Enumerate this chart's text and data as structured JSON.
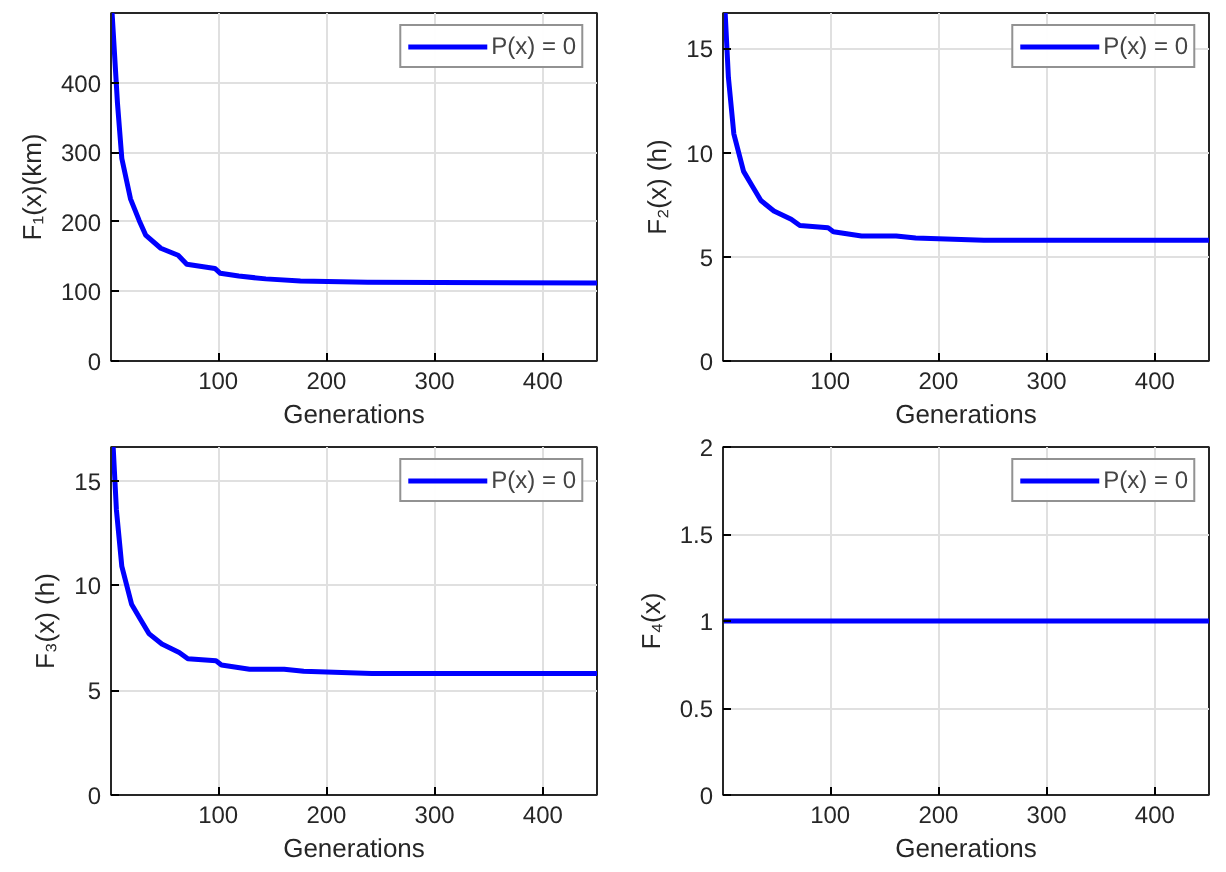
{
  "chart_data": [
    {
      "type": "line",
      "xlabel": "Generations",
      "ylabel": "F₁(x)(km)",
      "xlim": [
        1,
        450
      ],
      "ylim": [
        0,
        500
      ],
      "xticks": [
        100,
        200,
        300,
        400
      ],
      "yticks": [
        0,
        100,
        200,
        300,
        400
      ],
      "grid": true,
      "legend": "top right",
      "line_style": "solid",
      "x": [
        2,
        7,
        11,
        19,
        27,
        33,
        47,
        63,
        71,
        97,
        102,
        119,
        144,
        176,
        238,
        450
      ],
      "series": [
        {
          "name": "P(x) = 0",
          "color": "#0000ff",
          "values": [
            500,
            370,
            291,
            233,
            202,
            181,
            162,
            152,
            139,
            133,
            126,
            122,
            118,
            115,
            113,
            112
          ]
        }
      ]
    },
    {
      "type": "line",
      "xlabel": "Generations",
      "ylabel": "F₂(x) (h)",
      "xlim": [
        1,
        450
      ],
      "ylim": [
        0,
        16.7
      ],
      "xticks": [
        100,
        200,
        300,
        400
      ],
      "yticks": [
        0,
        5,
        10,
        15
      ],
      "grid": true,
      "legend": "top right",
      "line_style": "solid",
      "x": [
        3,
        6,
        11,
        20,
        28,
        36,
        48,
        64,
        72,
        98,
        103,
        129,
        161,
        179,
        242,
        450
      ],
      "series": [
        {
          "name": "P(x) = 0",
          "color": "#0000ff",
          "values": [
            16.7,
            13.6,
            10.9,
            9.1,
            8.4,
            7.7,
            7.2,
            6.8,
            6.5,
            6.4,
            6.2,
            6.0,
            6.0,
            5.9,
            5.8,
            5.8
          ]
        }
      ]
    },
    {
      "type": "line",
      "xlabel": "Generations",
      "ylabel": "F₃(x) (h)",
      "xlim": [
        1,
        450
      ],
      "ylim": [
        0,
        16.6
      ],
      "xticks": [
        100,
        200,
        300,
        400
      ],
      "yticks": [
        0,
        5,
        10,
        15
      ],
      "grid": true,
      "legend": "top right",
      "line_style": "solid",
      "x": [
        3,
        6,
        11,
        20,
        28,
        36,
        48,
        64,
        72,
        98,
        103,
        129,
        161,
        179,
        242,
        450
      ],
      "series": [
        {
          "name": "P(x) = 0",
          "color": "#0000ff",
          "values": [
            16.6,
            13.6,
            10.9,
            9.1,
            8.4,
            7.7,
            7.2,
            6.8,
            6.5,
            6.4,
            6.2,
            6.0,
            6.0,
            5.9,
            5.8,
            5.8
          ]
        }
      ]
    },
    {
      "type": "line",
      "xlabel": "Generations",
      "ylabel": "F₄(x)",
      "xlim": [
        1,
        450
      ],
      "ylim": [
        0,
        2
      ],
      "xticks": [
        100,
        200,
        300,
        400
      ],
      "yticks": [
        0,
        {
          "value": 0.5,
          "label": "0.5"
        },
        1,
        {
          "value": 1.5,
          "label": "1.5"
        },
        2
      ],
      "grid": true,
      "legend": "top right",
      "line_style": "solid",
      "x": [
        1,
        450
      ],
      "series": [
        {
          "name": "P(x) = 0",
          "color": "#0000ff",
          "values": [
            1,
            1
          ]
        }
      ]
    }
  ]
}
